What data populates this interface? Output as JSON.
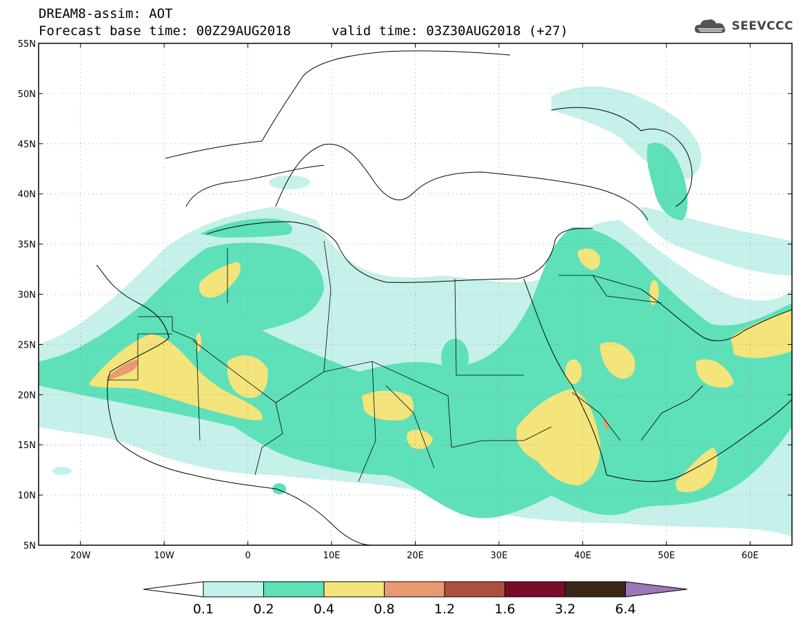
{
  "title": {
    "line1": "DREAM8-assim: AOT",
    "line2": "Forecast base time: 00Z29AUG2018",
    "valid": "valid time: 03Z30AUG2018 (+27)"
  },
  "logo": {
    "text": "SEEVCCC",
    "icon": "cloud-icon"
  },
  "axes": {
    "lon_range": [
      -25,
      65
    ],
    "lat_range": [
      5,
      55
    ],
    "x_ticks": [
      "20W",
      "10W",
      "0",
      "10E",
      "20E",
      "30E",
      "40E",
      "50E",
      "60E"
    ],
    "y_ticks": [
      "55N",
      "50N",
      "45N",
      "40N",
      "35N",
      "30N",
      "25N",
      "20N",
      "15N",
      "10N",
      "5N"
    ],
    "grid": "dotted"
  },
  "colorbar": {
    "labels": [
      "0.1",
      "0.2",
      "0.4",
      "0.8",
      "1.2",
      "1.6",
      "3.2",
      "6.4"
    ],
    "colors": [
      "#c6f0ea",
      "#5ee0b9",
      "#f3e47b",
      "#e99a72",
      "#ad4f3e",
      "#7a0c2b",
      "#3a2716",
      "#9b78b6"
    ],
    "under_color": "#ffffff",
    "over_color": "#9b78b6"
  },
  "field": {
    "variable": "AOT",
    "colors": {
      "c1": "#c6f0ea",
      "c2": "#5ee0b9",
      "c3": "#f3e47b",
      "c4": "#e99a72"
    }
  }
}
